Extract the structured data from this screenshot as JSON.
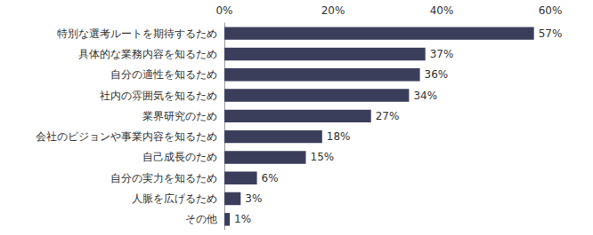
{
  "chart_data": {
    "type": "bar",
    "orientation": "horizontal",
    "categories": [
      "特別な選考ルートを期待するため",
      "具体的な業務内容を知るため",
      "自分の適性を知るため",
      "社内の雰囲気を知るため",
      "業界研究のため",
      "会社のビジョンや事業内容を知るため",
      "自己成長のため",
      "自分の実力を知るため",
      "人脈を広げるため",
      "その他"
    ],
    "values": [
      57,
      37,
      36,
      34,
      27,
      18,
      15,
      6,
      3,
      1
    ],
    "value_labels": [
      "57%",
      "37%",
      "36%",
      "34%",
      "27%",
      "18%",
      "15%",
      "6%",
      "3%",
      "1%"
    ],
    "color": "#3b3e5b",
    "xlim": [
      0,
      60
    ],
    "xticks": [
      {
        "value": 0,
        "label": "0%"
      },
      {
        "value": 20,
        "label": "20%"
      },
      {
        "value": 40,
        "label": "40%"
      },
      {
        "value": 60,
        "label": "60%"
      }
    ],
    "grid": false,
    "data_labels": true
  }
}
